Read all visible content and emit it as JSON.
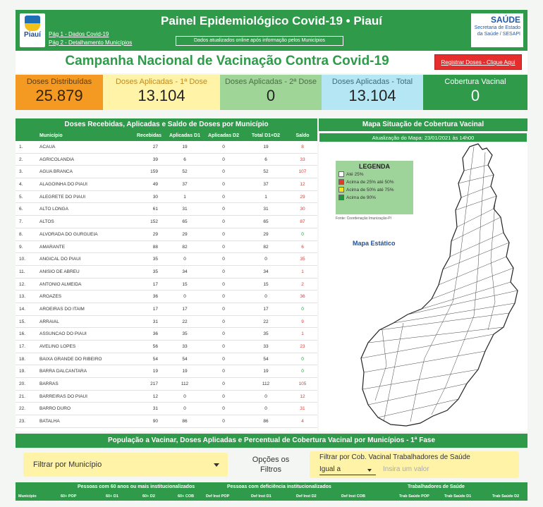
{
  "header": {
    "title": "Painel Epidemiológico Covid-19 • Piauí",
    "link1": "Pág 1 - Dados Covid-19",
    "link2": "Pág 2 - Detalhamento Municípios",
    "update_note": "Dados atualizados online após informação pelos Municípios",
    "logo_word": "Piauí",
    "saude_big": "SAÚDE",
    "saude_line1": "Secretaria de Estado",
    "saude_line2": "da Saúde / SESAPI"
  },
  "campaign": {
    "title": "Campanha Nacional de Vacinação Contra Covid-19",
    "register_label": "Registrar Doses - Clique Aqui"
  },
  "kpis": {
    "dist_label": "Doses Distribuídas",
    "dist_value": "25.879",
    "d1_label": "Doses Aplicadas - 1ª Dose",
    "d1_value": "13.104",
    "d2_label": "Doses Aplicadas - 2ª Dose",
    "d2_value": "0",
    "tot_label": "Doses Aplicadas - Total",
    "tot_value": "13.104",
    "cob_label": "Cobertura Vacinal",
    "cob_value": "0"
  },
  "doses_table": {
    "title": "Doses Recebidas, Aplicadas e Saldo de Doses por Município",
    "headers": [
      "Município",
      "Recebidas",
      "Aplicadas D1",
      "Aplicadas D2",
      "Total D1+D2",
      "Saldo"
    ],
    "rows": [
      [
        "1.",
        "ACAUA",
        "27",
        "19",
        "0",
        "19",
        "8"
      ],
      [
        "2.",
        "AGRICOLANDIA",
        "39",
        "6",
        "0",
        "6",
        "33"
      ],
      [
        "3.",
        "AGUA BRANCA",
        "159",
        "52",
        "0",
        "52",
        "107"
      ],
      [
        "4.",
        "ALAGOINHA DO PIAUI",
        "49",
        "37",
        "0",
        "37",
        "12"
      ],
      [
        "5.",
        "ALEGRETE DO PIAUI",
        "30",
        "1",
        "0",
        "1",
        "29"
      ],
      [
        "6.",
        "ALTO LONGA",
        "61",
        "31",
        "0",
        "31",
        "30"
      ],
      [
        "7.",
        "ALTOS",
        "152",
        "65",
        "0",
        "65",
        "87"
      ],
      [
        "8.",
        "ALVORADA DO GURGUEIA",
        "29",
        "29",
        "0",
        "29",
        "0"
      ],
      [
        "9.",
        "AMARANTE",
        "88",
        "82",
        "0",
        "82",
        "6"
      ],
      [
        "10.",
        "ANGICAL DO PIAUI",
        "35",
        "0",
        "0",
        "0",
        "35"
      ],
      [
        "11.",
        "ANISIO DE ABREU",
        "35",
        "34",
        "0",
        "34",
        "1"
      ],
      [
        "12.",
        "ANTONIO ALMEIDA",
        "17",
        "15",
        "0",
        "15",
        "2"
      ],
      [
        "13.",
        "AROAZES",
        "36",
        "0",
        "0",
        "0",
        "36"
      ],
      [
        "14.",
        "AROEIRAS DO ITAIM",
        "17",
        "17",
        "0",
        "17",
        "0"
      ],
      [
        "15.",
        "ARRAIAL",
        "31",
        "22",
        "0",
        "22",
        "9"
      ],
      [
        "16.",
        "ASSUNCAO DO PIAUI",
        "36",
        "35",
        "0",
        "35",
        "1"
      ],
      [
        "17.",
        "AVELINO LOPES",
        "56",
        "33",
        "0",
        "33",
        "23"
      ],
      [
        "18.",
        "BAIXA GRANDE DO RIBEIRO",
        "54",
        "54",
        "0",
        "54",
        "0"
      ],
      [
        "19.",
        "BARRA DALCANTARA",
        "19",
        "19",
        "0",
        "19",
        "0"
      ],
      [
        "20.",
        "BARRAS",
        "217",
        "112",
        "0",
        "112",
        "105"
      ],
      [
        "21.",
        "BARREIRAS DO PIAUI",
        "12",
        "0",
        "0",
        "0",
        "12"
      ],
      [
        "22.",
        "BARRO DURO",
        "31",
        "0",
        "0",
        "0",
        "31"
      ],
      [
        "23.",
        "BATALHA",
        "90",
        "86",
        "0",
        "86",
        "4"
      ]
    ]
  },
  "map": {
    "title": "Mapa Situação de Cobertura Vacinal",
    "update": "Atualização do Mapa: 23/01/2021 às 14h00",
    "legend_title": "LEGENDA",
    "legend": [
      {
        "label": "Até 25%",
        "color": "#ffffff"
      },
      {
        "label": "Acima de 25% até 50%",
        "color": "#e23a2e"
      },
      {
        "label": "Acima de 50% até 75%",
        "color": "#f2e21b"
      },
      {
        "label": "Acima de 90%",
        "color": "#1a9a3a"
      }
    ],
    "source": "Fonte: Coordenação Imunização-PI",
    "static_label": "Mapa Estático"
  },
  "population": {
    "title": "População a Vacinar, Doses Aplicadas e Percentual de Cobertura Vacinal por Municípios - 1ª Fase",
    "filter_mun": "Filtrar por Município",
    "options_label_1": "Opções os",
    "options_label_2": "Filtros",
    "filter_cob_title": "Filtrar por Cob. Vacinal Trabalhadores de Saúde",
    "operator": "Igual a",
    "value_placeholder": "Insira um valor",
    "group_headers": [
      "Pessoas com 60 anos ou mais institucionalizados",
      "Pessoas com deficiência institucionalizados",
      "Trabalhadores de Saúde"
    ],
    "col_headers": [
      "Município",
      "60+ POP",
      "60+ D1",
      "60+ D2",
      "60+ COB",
      "Def Inst POP",
      "Def Inst D1",
      "Def Inst D2",
      "Def Inst COB",
      "Trab Saúde POP",
      "Trab Saúde D1",
      "Trab Saúde D2"
    ]
  }
}
